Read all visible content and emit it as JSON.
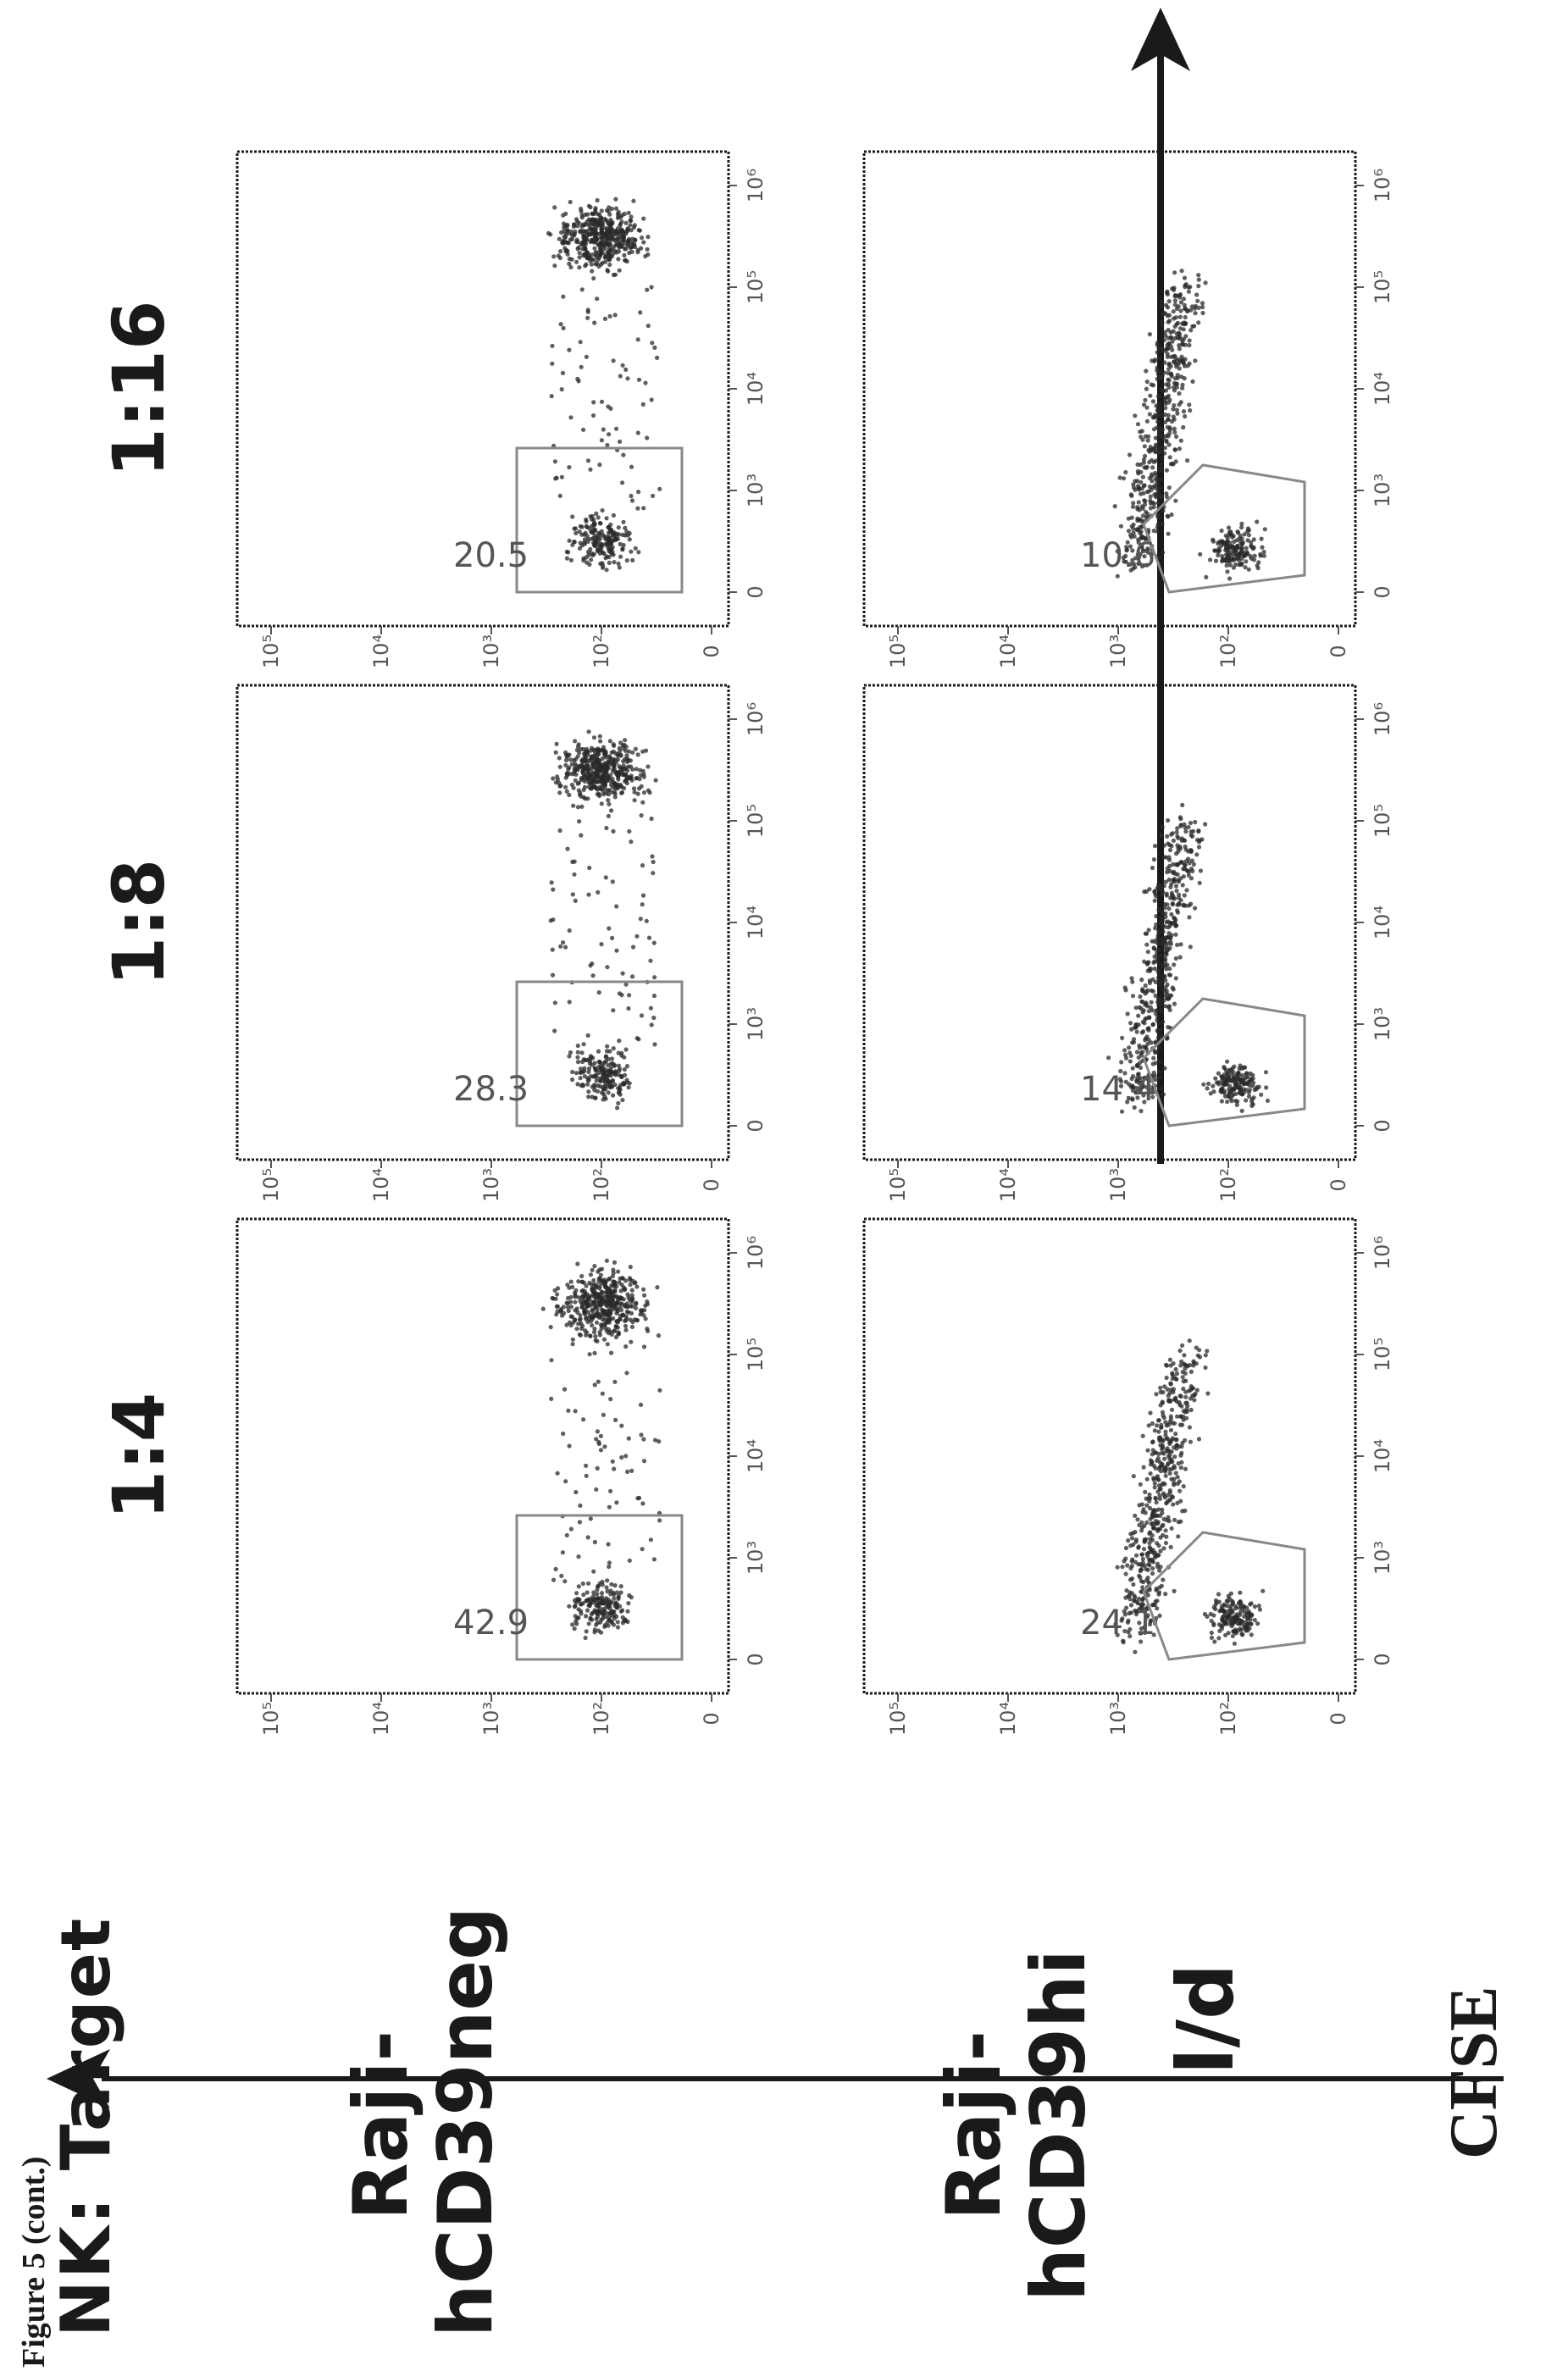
{
  "figure_caption": "Figure 5 (cont.)",
  "heading": "NK: Target",
  "row_labels": [
    [
      "Raji-",
      "hCD39neg"
    ],
    [
      "Raji-",
      "hCD39hi"
    ]
  ],
  "column_labels": [
    "1:4",
    "1:8",
    "1:16"
  ],
  "y_axis_label": "l/d",
  "x_axis_label": "CFSE",
  "x_tick_labels": [
    "0",
    "10²",
    "10³",
    "10⁴",
    "10⁵"
  ],
  "y_tick_labels": [
    "0",
    "10³",
    "10⁴",
    "10⁵",
    "10⁶"
  ],
  "colors": {
    "ink": "#1a1a1a",
    "dots": "#2a2a2a",
    "gate": "#888888"
  },
  "chart_data": [
    {
      "type": "scatter",
      "row": "Raji-hCD39neg",
      "column": "1:4",
      "gate_percent": "42.9"
    },
    {
      "type": "scatter",
      "row": "Raji-hCD39neg",
      "column": "1:8",
      "gate_percent": "28.3"
    },
    {
      "type": "scatter",
      "row": "Raji-hCD39neg",
      "column": "1:16",
      "gate_percent": "20.5"
    },
    {
      "type": "scatter",
      "row": "Raji-hCD39hi",
      "column": "1:4",
      "gate_percent": "24.1"
    },
    {
      "type": "scatter",
      "row": "Raji-hCD39hi",
      "column": "1:8",
      "gate_percent": "14.4"
    },
    {
      "type": "scatter",
      "row": "Raji-hCD39hi",
      "column": "1:16",
      "gate_percent": "10.6"
    }
  ]
}
